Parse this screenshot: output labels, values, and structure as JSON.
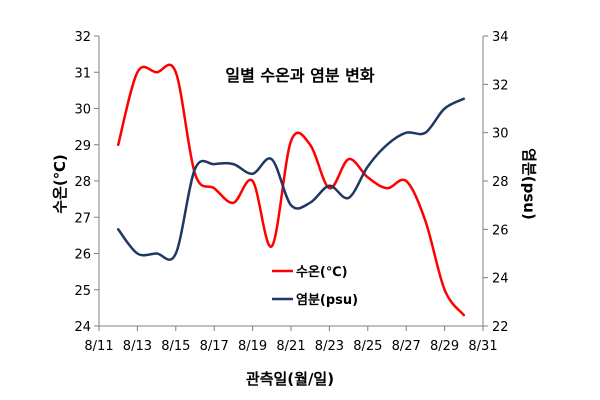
{
  "chart_data": {
    "type": "line",
    "title": "일별 수온과 염분 변화",
    "xlabel": "관측일(월/일)",
    "ylabel_left": "수온(℃)",
    "ylabel_right": "염분(psu)",
    "x_ticks": [
      "8/11",
      "8/13",
      "8/15",
      "8/17",
      "8/19",
      "8/21",
      "8/23",
      "8/25",
      "8/27",
      "8/29",
      "8/31"
    ],
    "x_range": [
      "8/11",
      "8/31"
    ],
    "ylim_left": [
      24,
      32
    ],
    "yticks_left": [
      24,
      25,
      26,
      27,
      28,
      29,
      30,
      31,
      32
    ],
    "ylim_right": [
      22,
      34
    ],
    "yticks_right": [
      22,
      24,
      26,
      28,
      30,
      32,
      34
    ],
    "grid": false,
    "legend_position": "center-bottom",
    "series": [
      {
        "name": "수온(℃)",
        "axis": "left",
        "color": "#ff0000",
        "x": [
          "8/12",
          "8/13",
          "8/14",
          "8/15",
          "8/16",
          "8/17",
          "8/18",
          "8/19",
          "8/20",
          "8/21",
          "8/22",
          "8/23",
          "8/24",
          "8/25",
          "8/26",
          "8/27",
          "8/28",
          "8/29",
          "8/30"
        ],
        "values": [
          29.0,
          31.0,
          31.0,
          31.0,
          28.2,
          27.8,
          27.4,
          28.0,
          26.2,
          29.1,
          29.0,
          27.8,
          28.6,
          28.1,
          27.8,
          28.0,
          26.9,
          25.0,
          24.3
        ]
      },
      {
        "name": "염분(psu)",
        "axis": "right",
        "color": "#1f3864",
        "x": [
          "8/12",
          "8/13",
          "8/14",
          "8/15",
          "8/16",
          "8/17",
          "8/18",
          "8/19",
          "8/20",
          "8/21",
          "8/22",
          "8/23",
          "8/24",
          "8/25",
          "8/26",
          "8/27",
          "8/28",
          "8/29",
          "8/30"
        ],
        "values": [
          26.0,
          25.0,
          25.0,
          25.0,
          28.5,
          28.7,
          28.7,
          28.3,
          28.9,
          27.0,
          27.1,
          27.8,
          27.3,
          28.6,
          29.5,
          30.0,
          30.0,
          31.0,
          31.4
        ]
      }
    ]
  }
}
